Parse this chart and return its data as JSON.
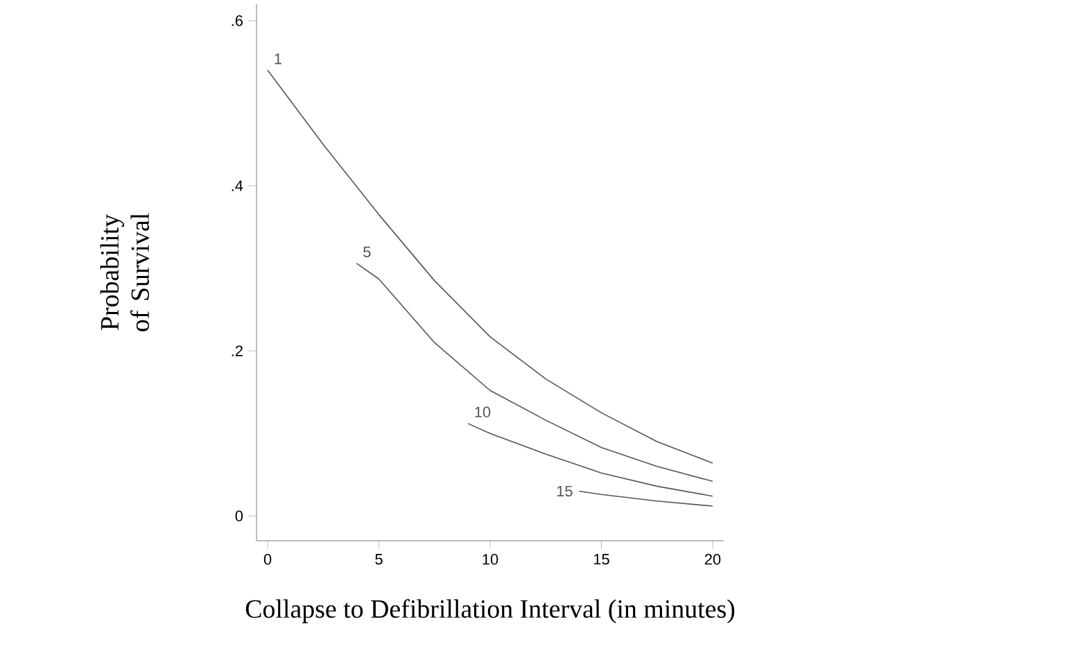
{
  "chart_data": {
    "type": "line",
    "xlabel": "Collapse to Defibrillation Interval (in minutes)",
    "ylabel": "Probability of Survival",
    "series": [
      {
        "name": "1",
        "color": "#555555",
        "x": [
          0,
          2.5,
          5,
          7.5,
          10,
          12.5,
          15,
          17.5,
          20
        ],
        "values": [
          0.54,
          0.45,
          0.365,
          0.285,
          0.217,
          0.166,
          0.125,
          0.09,
          0.064
        ]
      },
      {
        "name": "5",
        "color": "#555555",
        "x": [
          4,
          5,
          7.5,
          10,
          12.5,
          15,
          17.5,
          20
        ],
        "values": [
          0.306,
          0.287,
          0.21,
          0.152,
          0.116,
          0.083,
          0.06,
          0.042
        ]
      },
      {
        "name": "10",
        "color": "#555555",
        "x": [
          9,
          10,
          12.5,
          15,
          17.5,
          20
        ],
        "values": [
          0.112,
          0.1,
          0.075,
          0.052,
          0.036,
          0.024
        ]
      },
      {
        "name": "15",
        "color": "#555555",
        "x": [
          14,
          15,
          17.5,
          20
        ],
        "values": [
          0.03,
          0.026,
          0.018,
          0.012
        ]
      }
    ],
    "xlim": [
      -0.5,
      20.5
    ],
    "ylim": [
      -0.03,
      0.62
    ],
    "xticks": [
      0,
      5,
      10,
      15,
      20
    ],
    "yticks": [
      {
        "value": 0,
        "label": "0"
      },
      {
        "value": 0.2,
        "label": ".2"
      },
      {
        "value": 0.4,
        "label": ".4"
      },
      {
        "value": 0.6,
        "label": ".6"
      }
    ],
    "grid": false,
    "legend": false,
    "marker": "none",
    "line_style": "solid"
  }
}
